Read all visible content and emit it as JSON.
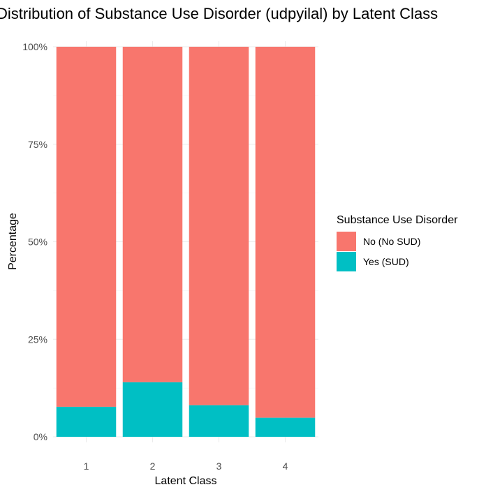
{
  "chart_data": {
    "type": "bar",
    "stacked": true,
    "percent": true,
    "title": "Distribution of Substance Use Disorder (udpyilal) by Latent Class",
    "xlabel": "Latent Class",
    "ylabel": "Percentage",
    "categories": [
      "1",
      "2",
      "3",
      "4"
    ],
    "ylim": [
      0,
      100
    ],
    "y_ticks": [
      "0%",
      "25%",
      "50%",
      "75%",
      "100%"
    ],
    "y_tick_values": [
      0,
      25,
      50,
      75,
      100
    ],
    "grid": true,
    "legend": {
      "title": "Substance Use Disorder",
      "position": "right"
    },
    "series": [
      {
        "name": "Yes (SUD)",
        "color": "#00BFC4",
        "values": [
          7.7,
          14.0,
          8.1,
          4.9
        ]
      },
      {
        "name": "No (No SUD)",
        "color": "#F8766D",
        "values": [
          92.3,
          86.0,
          91.9,
          95.1
        ]
      }
    ],
    "legend_order": [
      "No (No SUD)",
      "Yes (SUD)"
    ]
  }
}
